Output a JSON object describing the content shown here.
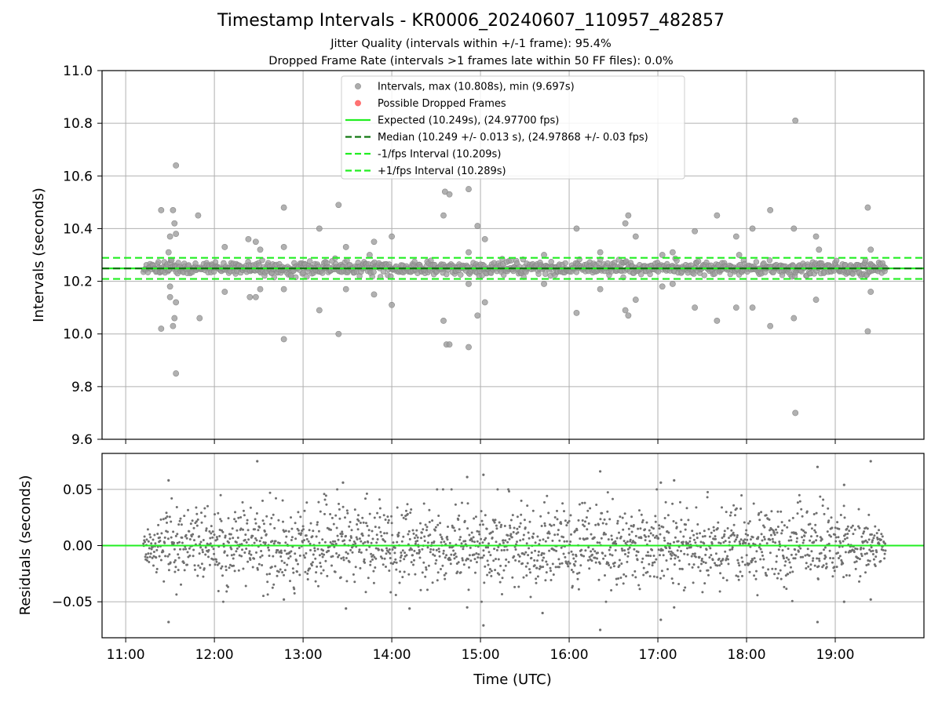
{
  "figure": {
    "title": "Timestamp Intervals - KR0006_20240607_110957_482857",
    "subtitle_1": "Jitter Quality (intervals within +/-1 frame): 95.4%",
    "subtitle_2": "Dropped Frame Rate (intervals >1 frames late within 50 FF files): 0.0%"
  },
  "chart_data": [
    {
      "type": "scatter",
      "name": "intervals",
      "title": "",
      "xlabel": "",
      "ylabel": "Intervals (seconds)",
      "ylim": [
        9.6,
        11.0
      ],
      "xlim": [
        "10:44",
        "20:00"
      ],
      "yticks": [
        9.6,
        9.8,
        10.0,
        10.2,
        10.4,
        10.6,
        10.8,
        11.0
      ],
      "ytick_labels": [
        "9.6",
        "9.8",
        "10.0",
        "10.2",
        "10.4",
        "10.6",
        "10.8",
        "11.0"
      ],
      "xticks": [
        "11:00",
        "12:00",
        "13:00",
        "14:00",
        "15:00",
        "16:00",
        "17:00",
        "18:00",
        "19:00"
      ],
      "grid": true,
      "legend_position": "top-center",
      "legend": [
        {
          "label": "Intervals, max (10.808s), min (9.697s)",
          "kind": "marker",
          "color": "#9e9e9e"
        },
        {
          "label": "Possible Dropped Frames",
          "kind": "marker",
          "color": "#ff5a5a"
        },
        {
          "label": "Expected (10.249s), (24.97700 fps)",
          "kind": "line",
          "color": "#22ee22"
        },
        {
          "label": "Median (10.249 +/- 0.013 s), (24.97868 +/- 0.03 fps)",
          "kind": "dashed",
          "color": "#117711"
        },
        {
          "label": "-1/fps Interval (10.209s)",
          "kind": "dashed",
          "color": "#22ee22"
        },
        {
          "label": "+1/fps Interval (10.289s)",
          "kind": "dashed",
          "color": "#22ee22"
        }
      ],
      "reference_lines": {
        "expected": 10.249,
        "median": 10.249,
        "minus_1fps": 10.209,
        "plus_1fps": 10.289
      },
      "time_range": [
        "11:12",
        "19:34"
      ],
      "outliers": [
        {
          "x": "11:24",
          "y": 10.47
        },
        {
          "x": "11:24",
          "y": 10.02
        },
        {
          "x": "11:29",
          "y": 10.31
        },
        {
          "x": "11:30",
          "y": 10.37
        },
        {
          "x": "11:30",
          "y": 10.18
        },
        {
          "x": "11:30",
          "y": 10.14
        },
        {
          "x": "11:32",
          "y": 10.47
        },
        {
          "x": "11:32",
          "y": 10.03
        },
        {
          "x": "11:33",
          "y": 10.42
        },
        {
          "x": "11:33",
          "y": 10.06
        },
        {
          "x": "11:34",
          "y": 10.64
        },
        {
          "x": "11:34",
          "y": 10.38
        },
        {
          "x": "11:34",
          "y": 10.12
        },
        {
          "x": "11:34",
          "y": 9.85
        },
        {
          "x": "11:49",
          "y": 10.45
        },
        {
          "x": "11:50",
          "y": 10.06
        },
        {
          "x": "12:07",
          "y": 10.33
        },
        {
          "x": "12:07",
          "y": 10.16
        },
        {
          "x": "12:23",
          "y": 10.36
        },
        {
          "x": "12:24",
          "y": 10.14
        },
        {
          "x": "12:28",
          "y": 10.35
        },
        {
          "x": "12:28",
          "y": 10.14
        },
        {
          "x": "12:31",
          "y": 10.32
        },
        {
          "x": "12:31",
          "y": 10.17
        },
        {
          "x": "12:47",
          "y": 10.48
        },
        {
          "x": "12:47",
          "y": 9.98
        },
        {
          "x": "12:47",
          "y": 10.33
        },
        {
          "x": "12:47",
          "y": 10.17
        },
        {
          "x": "13:11",
          "y": 10.4
        },
        {
          "x": "13:11",
          "y": 10.09
        },
        {
          "x": "13:24",
          "y": 10.49
        },
        {
          "x": "13:24",
          "y": 10.0
        },
        {
          "x": "13:29",
          "y": 10.33
        },
        {
          "x": "13:29",
          "y": 10.17
        },
        {
          "x": "13:45",
          "y": 10.3
        },
        {
          "x": "13:48",
          "y": 10.35
        },
        {
          "x": "13:48",
          "y": 10.15
        },
        {
          "x": "14:00",
          "y": 10.37
        },
        {
          "x": "14:00",
          "y": 10.11
        },
        {
          "x": "14:35",
          "y": 10.45
        },
        {
          "x": "14:35",
          "y": 10.05
        },
        {
          "x": "14:36",
          "y": 10.54
        },
        {
          "x": "14:37",
          "y": 9.96
        },
        {
          "x": "14:39",
          "y": 10.53
        },
        {
          "x": "14:39",
          "y": 9.96
        },
        {
          "x": "14:52",
          "y": 10.55
        },
        {
          "x": "14:52",
          "y": 9.95
        },
        {
          "x": "14:52",
          "y": 10.31
        },
        {
          "x": "14:52",
          "y": 10.19
        },
        {
          "x": "14:58",
          "y": 10.41
        },
        {
          "x": "14:58",
          "y": 10.07
        },
        {
          "x": "15:03",
          "y": 10.36
        },
        {
          "x": "15:03",
          "y": 10.12
        },
        {
          "x": "15:43",
          "y": 10.3
        },
        {
          "x": "15:43",
          "y": 10.19
        },
        {
          "x": "16:05",
          "y": 10.4
        },
        {
          "x": "16:05",
          "y": 10.08
        },
        {
          "x": "16:21",
          "y": 10.31
        },
        {
          "x": "16:21",
          "y": 10.17
        },
        {
          "x": "16:38",
          "y": 10.42
        },
        {
          "x": "16:38",
          "y": 10.09
        },
        {
          "x": "16:40",
          "y": 10.45
        },
        {
          "x": "16:40",
          "y": 10.07
        },
        {
          "x": "16:45",
          "y": 10.37
        },
        {
          "x": "16:45",
          "y": 10.13
        },
        {
          "x": "17:03",
          "y": 10.3
        },
        {
          "x": "17:03",
          "y": 10.18
        },
        {
          "x": "17:10",
          "y": 10.31
        },
        {
          "x": "17:10",
          "y": 10.19
        },
        {
          "x": "17:25",
          "y": 10.39
        },
        {
          "x": "17:25",
          "y": 10.1
        },
        {
          "x": "17:40",
          "y": 10.45
        },
        {
          "x": "17:40",
          "y": 10.05
        },
        {
          "x": "17:53",
          "y": 10.37
        },
        {
          "x": "17:53",
          "y": 10.1
        },
        {
          "x": "17:55",
          "y": 10.3
        },
        {
          "x": "18:04",
          "y": 10.4
        },
        {
          "x": "18:04",
          "y": 10.1
        },
        {
          "x": "18:16",
          "y": 10.47
        },
        {
          "x": "18:16",
          "y": 10.03
        },
        {
          "x": "18:32",
          "y": 10.4
        },
        {
          "x": "18:32",
          "y": 10.06
        },
        {
          "x": "18:33",
          "y": 10.81
        },
        {
          "x": "18:33",
          "y": 9.7
        },
        {
          "x": "18:47",
          "y": 10.37
        },
        {
          "x": "18:47",
          "y": 10.13
        },
        {
          "x": "18:49",
          "y": 10.32
        },
        {
          "x": "19:22",
          "y": 10.48
        },
        {
          "x": "19:22",
          "y": 10.01
        },
        {
          "x": "19:24",
          "y": 10.32
        },
        {
          "x": "19:24",
          "y": 10.16
        }
      ]
    },
    {
      "type": "scatter",
      "name": "residuals",
      "title": "",
      "xlabel": "Time (UTC)",
      "ylabel": "Residuals (seconds)",
      "ylim": [
        -0.082,
        0.082
      ],
      "yticks": [
        -0.05,
        0.0,
        0.05
      ],
      "ytick_labels": [
        "−0.05",
        "0.00",
        "0.05"
      ],
      "xticks": [
        "11:00",
        "12:00",
        "13:00",
        "14:00",
        "15:00",
        "16:00",
        "17:00",
        "18:00",
        "19:00"
      ],
      "grid": true,
      "zero_line": 0.0,
      "time_range": [
        "11:12",
        "19:34"
      ],
      "outliers": [
        {
          "x": "11:29",
          "y": 0.058
        },
        {
          "x": "11:29",
          "y": -0.068
        },
        {
          "x": "12:29",
          "y": 0.075
        },
        {
          "x": "12:47",
          "y": -0.048
        },
        {
          "x": "13:27",
          "y": 0.056
        },
        {
          "x": "13:29",
          "y": -0.056
        },
        {
          "x": "14:12",
          "y": -0.056
        },
        {
          "x": "14:51",
          "y": 0.061
        },
        {
          "x": "14:51",
          "y": -0.055
        },
        {
          "x": "15:02",
          "y": 0.063
        },
        {
          "x": "15:02",
          "y": -0.071
        },
        {
          "x": "15:42",
          "y": -0.06
        },
        {
          "x": "16:21",
          "y": 0.066
        },
        {
          "x": "16:21",
          "y": -0.075
        },
        {
          "x": "17:02",
          "y": 0.056
        },
        {
          "x": "17:02",
          "y": -0.066
        },
        {
          "x": "17:11",
          "y": 0.058
        },
        {
          "x": "17:11",
          "y": -0.055
        },
        {
          "x": "18:48",
          "y": 0.07
        },
        {
          "x": "18:48",
          "y": -0.068
        },
        {
          "x": "19:06",
          "y": 0.054
        },
        {
          "x": "19:06",
          "y": -0.05
        },
        {
          "x": "19:24",
          "y": 0.075
        },
        {
          "x": "19:24",
          "y": -0.048
        }
      ]
    }
  ],
  "colors": {
    "points": "#9e9e9e",
    "points_edge": "#888888",
    "residual_points": "#6f6f6f",
    "expected": "#22ee22",
    "median": "#117711",
    "grid": "#b0b0b0",
    "dropped": "#ff5a5a"
  }
}
